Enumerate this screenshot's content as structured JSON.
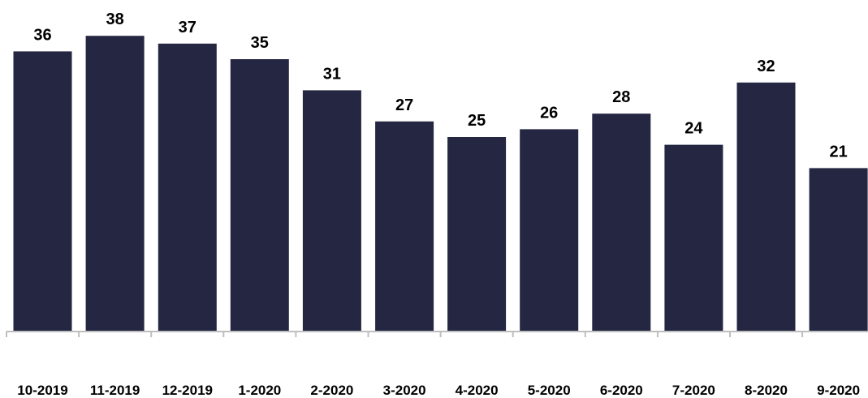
{
  "chart_data": {
    "type": "bar",
    "categories": [
      "10-2019",
      "11-2019",
      "12-2019",
      "1-2020",
      "2-2020",
      "3-2020",
      "4-2020",
      "5-2020",
      "6-2020",
      "7-2020",
      "8-2020",
      "9-2020"
    ],
    "values": [
      36,
      38,
      37,
      35,
      31,
      27,
      25,
      26,
      28,
      24,
      32,
      21
    ],
    "title": "",
    "xlabel": "",
    "ylabel": "",
    "ylim": [
      0,
      38
    ],
    "grid": false,
    "data_labels": true,
    "bar_color": "#242642"
  }
}
